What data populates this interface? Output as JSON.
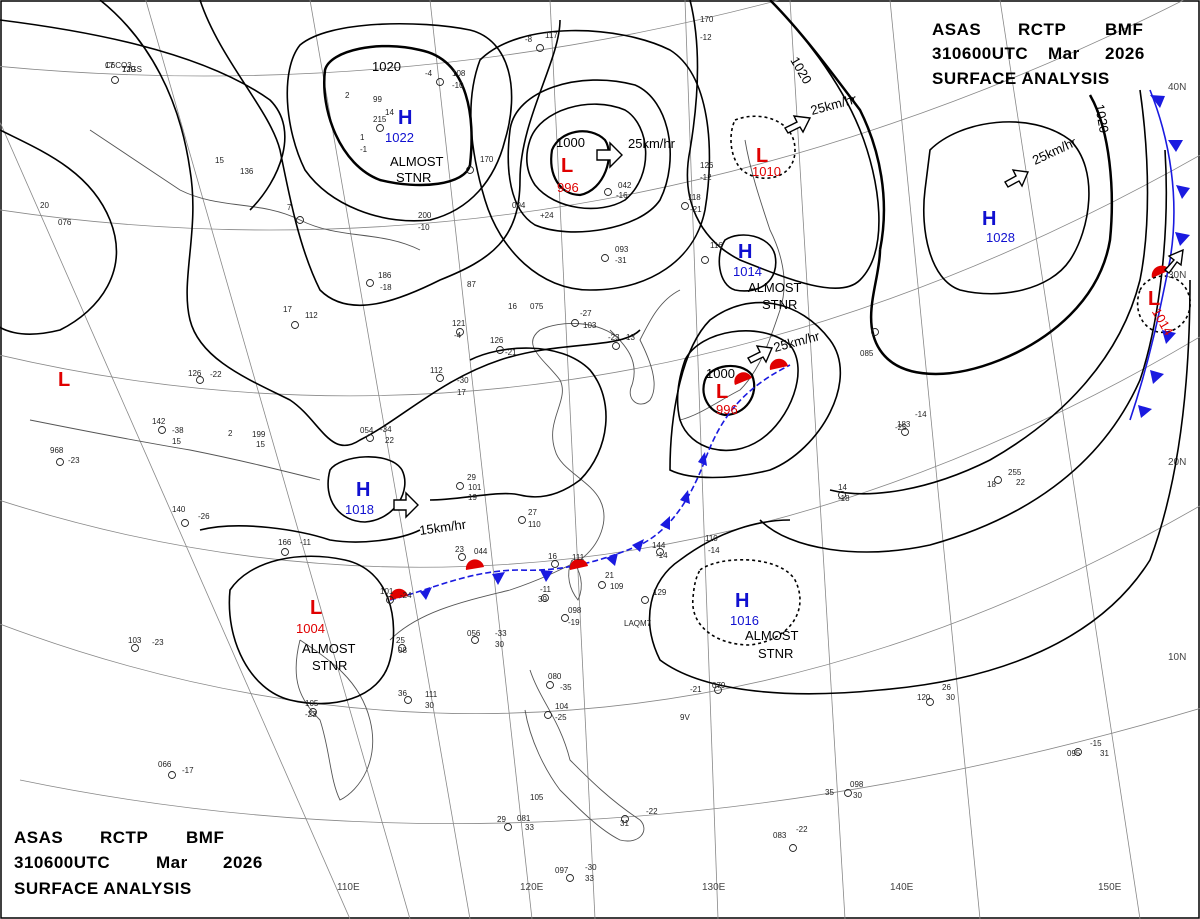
{
  "header_top": {
    "line1": [
      "ASAS",
      "RCTP",
      "BMF"
    ],
    "line2": [
      "310600UTC",
      "Mar",
      "2026"
    ],
    "line3": "SURFACE ANALYSIS"
  },
  "header_bottom": {
    "line1": [
      "ASAS",
      "RCTP",
      "BMF"
    ],
    "line2": [
      "310600UTC",
      "Mar",
      "2026"
    ],
    "line3": "SURFACE ANALYSIS"
  },
  "colors": {
    "high": "#1010d0",
    "low": "#e00000",
    "isobar": "#000000",
    "grid": "#777777",
    "coast": "#444444"
  },
  "longitudes": [
    "110E",
    "120E",
    "130E",
    "140E",
    "150E"
  ],
  "latitudes": [
    "40N",
    "30N",
    "20N",
    "10N"
  ],
  "pressure_centers": [
    {
      "id": "h-north",
      "type": "H",
      "value": "1022",
      "note": [
        "ALMOST",
        "STNR"
      ]
    },
    {
      "id": "l-manchuria",
      "type": "L",
      "value": "996"
    },
    {
      "id": "l-japansea",
      "type": "L",
      "value": "1010"
    },
    {
      "id": "h-pacific",
      "type": "H",
      "value": "1028"
    },
    {
      "id": "h-korea",
      "type": "H",
      "value": "1014",
      "note": [
        "ALMOST",
        "STNR"
      ]
    },
    {
      "id": "l-ryukyu",
      "type": "L",
      "value": "996"
    },
    {
      "id": "l-west",
      "type": "L",
      "value": ""
    },
    {
      "id": "h-china",
      "type": "H",
      "value": "1018"
    },
    {
      "id": "l-indochina",
      "type": "L",
      "value": "1004",
      "note": [
        "ALMOST",
        "STNR"
      ]
    },
    {
      "id": "h-philsea",
      "type": "H",
      "value": "1016",
      "note": [
        "ALMOST",
        "STNR"
      ]
    },
    {
      "id": "l-east",
      "type": "L",
      "value": "1014"
    }
  ],
  "motions": [
    {
      "id": "m1",
      "text": "25km/hr"
    },
    {
      "id": "m2",
      "text": "25km/hr"
    },
    {
      "id": "m3",
      "text": "25km/hr"
    },
    {
      "id": "m4",
      "text": "25km/hr"
    },
    {
      "id": "m5",
      "text": "15km/hr"
    }
  ],
  "isobar_labels": [
    "1020",
    "1000",
    "1000",
    "1020",
    "1020"
  ],
  "station_obs": [
    "17",
    "129",
    "-4",
    "108",
    "-10",
    "-8",
    "117",
    "170",
    "-12",
    "99",
    "215",
    "14",
    "1",
    "-1",
    "2",
    "170",
    "15",
    "136",
    "7",
    "200",
    "-10",
    "094",
    "+24",
    "042",
    "-16",
    "126",
    "-12",
    "118",
    "-21",
    "116",
    "093",
    "-31",
    "20",
    "076",
    "186",
    "-18",
    "87",
    "17",
    "112",
    "16",
    "075",
    "-27",
    "103",
    "-23",
    "13",
    "121",
    "-4",
    "126",
    "-21",
    "112",
    "-30",
    "17",
    "126",
    "-22",
    "2",
    "199",
    "15",
    "054",
    "-34",
    "22",
    "142",
    "-38",
    "15",
    "968",
    "-23",
    "29",
    "101",
    "19",
    "140",
    "-26",
    "27",
    "110",
    "14",
    "-18",
    "183",
    "-14",
    "18",
    "255",
    "22",
    "166",
    "-11",
    "23",
    "044",
    "16",
    "111",
    "21",
    "109",
    "110",
    "-14",
    "144",
    "-14",
    "129",
    "-11",
    "39",
    "098",
    "-19",
    "101",
    "-24",
    "25",
    "08",
    "056",
    "-33",
    "30",
    "103",
    "-23",
    "36",
    "111",
    "30",
    "105",
    "-23",
    "080",
    "-35",
    "104",
    "-25",
    "079",
    "-21",
    "120",
    "26",
    "30",
    "095",
    "-15",
    "31",
    "066",
    "-17",
    "35",
    "098",
    "30",
    "083",
    "-22",
    "29",
    "081",
    "33",
    "105",
    "-22",
    "31",
    "097",
    "-30",
    "33",
    "085",
    "-25",
    "9V",
    "LAQM7",
    "C6CO3",
    "7JGS"
  ]
}
